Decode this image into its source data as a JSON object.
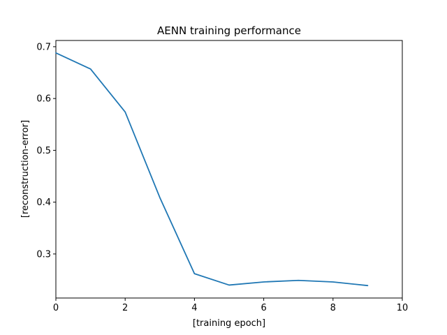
{
  "chart_data": {
    "type": "line",
    "title": "AENN training performance",
    "xlabel": "[training epoch]",
    "ylabel": "[reconstruction-error]",
    "xlim": [
      0,
      10
    ],
    "ylim": [
      0.215,
      0.712
    ],
    "xticks": [
      0,
      2,
      4,
      6,
      8,
      10
    ],
    "yticks": [
      0.3,
      0.4,
      0.5,
      0.6,
      0.7
    ],
    "xtick_labels": [
      "0",
      "2",
      "4",
      "6",
      "8",
      "10"
    ],
    "ytick_labels": [
      "0.3",
      "0.4",
      "0.5",
      "0.6",
      "0.7"
    ],
    "grid": false,
    "series": [
      {
        "color": "#1f77b4",
        "x": [
          0,
          1,
          2,
          3,
          4,
          5,
          6,
          7,
          8,
          9
        ],
        "y": [
          0.688,
          0.657,
          0.574,
          0.409,
          0.262,
          0.24,
          0.246,
          0.249,
          0.246,
          0.239
        ]
      }
    ]
  }
}
